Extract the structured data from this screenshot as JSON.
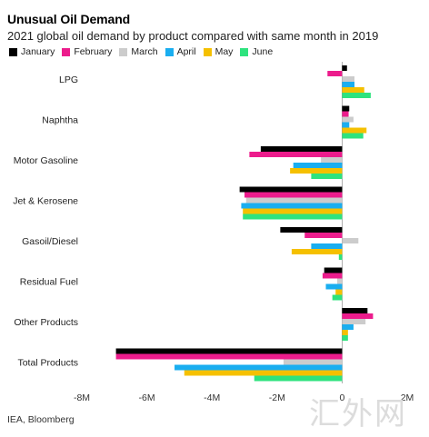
{
  "chart_data": {
    "type": "bar",
    "orientation": "horizontal",
    "title": "Unusual Oil Demand",
    "subtitle": "2021 global oil demand by product compared with same month in 2019",
    "categories": [
      "LPG",
      "Naphtha",
      "Motor Gasoline",
      "Jet & Kerosene",
      "Gasoil/Diesel",
      "Residual Fuel",
      "Other Products",
      "Total Products"
    ],
    "series": [
      {
        "name": "January",
        "color": "#000000",
        "values": [
          150000,
          220000,
          -2500000,
          -3150000,
          -1900000,
          -550000,
          780000,
          -6950000
        ]
      },
      {
        "name": "February",
        "color": "#ec1c8c",
        "values": [
          -450000,
          200000,
          -2850000,
          -3000000,
          -1150000,
          -600000,
          950000,
          -6950000
        ]
      },
      {
        "name": "March",
        "color": "#cccccc",
        "values": [
          380000,
          350000,
          -650000,
          -2950000,
          500000,
          -150000,
          720000,
          -1800000
        ]
      },
      {
        "name": "April",
        "color": "#1aaef0",
        "values": [
          380000,
          220000,
          -1500000,
          -3100000,
          -950000,
          -500000,
          350000,
          -5150000
        ]
      },
      {
        "name": "May",
        "color": "#f5c000",
        "values": [
          680000,
          750000,
          -1600000,
          -3050000,
          -1550000,
          -200000,
          180000,
          -4850000
        ]
      },
      {
        "name": "June",
        "color": "#2ee37e",
        "values": [
          880000,
          650000,
          -950000,
          -3050000,
          -100000,
          -300000,
          180000,
          -2700000
        ]
      }
    ],
    "xlim": [
      -8000000,
      2000000
    ],
    "x_ticks": [
      -8000000,
      -6000000,
      -4000000,
      -2000000,
      0,
      2000000
    ],
    "x_tick_labels": [
      "-8M",
      "-6M",
      "-4M",
      "-2M",
      "0",
      "2M"
    ],
    "grid": false,
    "legend_position": "top-left"
  },
  "source": "IEA, Bloomberg",
  "watermark": "汇外网"
}
